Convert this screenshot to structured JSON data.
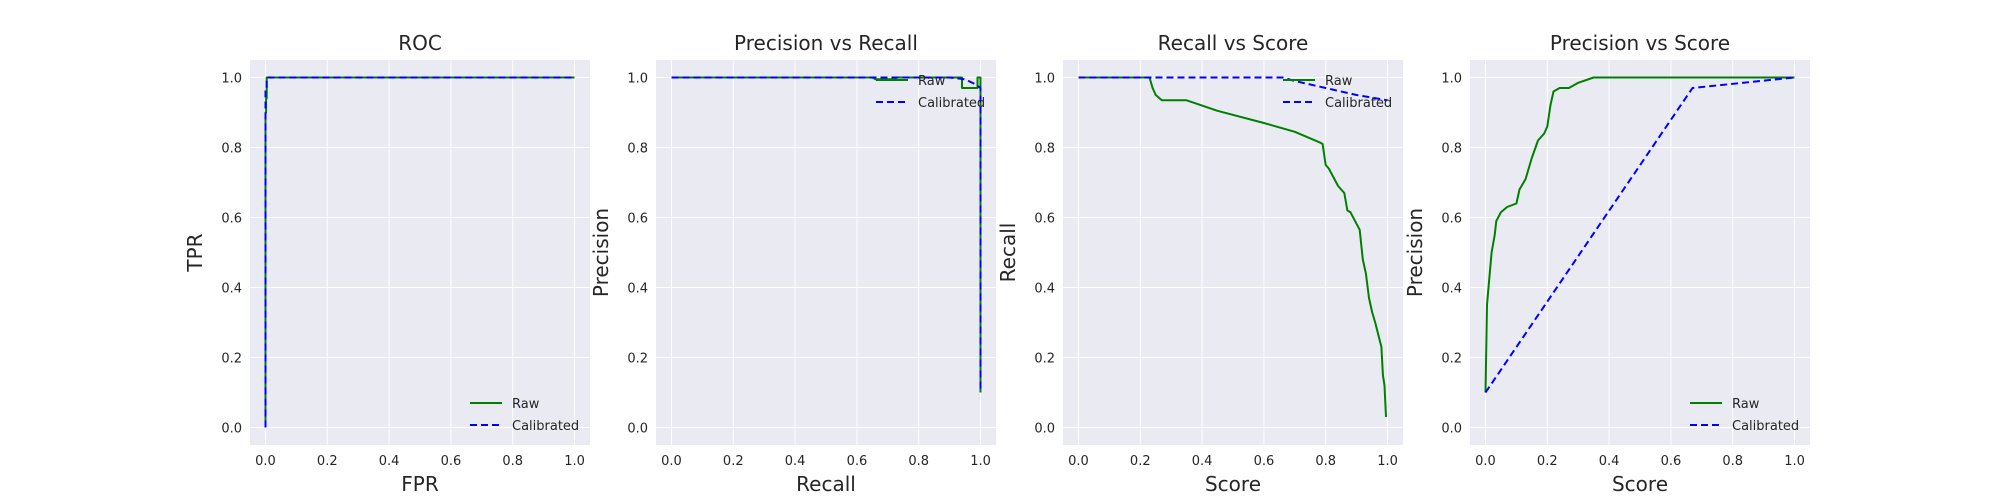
{
  "chart_data": [
    {
      "type": "line",
      "title": "ROC",
      "xlabel": "FPR",
      "ylabel": "TPR",
      "xlim": [
        -0.05,
        1.05
      ],
      "ylim": [
        -0.05,
        1.05
      ],
      "xticks": [
        0.0,
        0.2,
        0.4,
        0.6,
        0.8,
        1.0
      ],
      "yticks": [
        0.0,
        0.2,
        0.4,
        0.6,
        0.8,
        1.0
      ],
      "xtick_labels": [
        "0.0",
        "0.2",
        "0.4",
        "0.6",
        "0.8",
        "1.0"
      ],
      "ytick_labels": [
        "0.0",
        "0.2",
        "0.4",
        "0.6",
        "0.8",
        "1.0"
      ],
      "grid": true,
      "legend": "lower-right",
      "series": [
        {
          "name": "Raw",
          "color": "#008000",
          "style": "solid",
          "x": [
            0.0,
            0.0,
            0.002,
            0.002,
            0.004,
            0.004,
            0.01,
            1.0
          ],
          "y": [
            0.0,
            0.9,
            0.9,
            0.94,
            0.94,
            1.0,
            1.0,
            1.0
          ]
        },
        {
          "name": "Calibrated",
          "color": "#0000ff",
          "style": "dashed",
          "x": [
            0.0,
            0.0,
            0.004,
            0.004,
            1.0
          ],
          "y": [
            0.0,
            0.97,
            0.97,
            1.0,
            1.0
          ]
        }
      ]
    },
    {
      "type": "line",
      "title": "Precision vs Recall",
      "xlabel": "Recall",
      "ylabel": "Precision",
      "xlim": [
        -0.05,
        1.05
      ],
      "ylim": [
        -0.05,
        1.05
      ],
      "xticks": [
        0.0,
        0.2,
        0.4,
        0.6,
        0.8,
        1.0
      ],
      "yticks": [
        0.0,
        0.2,
        0.4,
        0.6,
        0.8,
        1.0
      ],
      "xtick_labels": [
        "0.0",
        "0.2",
        "0.4",
        "0.6",
        "0.8",
        "1.0"
      ],
      "ytick_labels": [
        "0.0",
        "0.2",
        "0.4",
        "0.6",
        "0.8",
        "1.0"
      ],
      "grid": true,
      "legend": "top-right",
      "series": [
        {
          "name": "Raw",
          "color": "#008000",
          "style": "solid",
          "x": [
            0.0,
            0.65,
            0.66,
            0.72,
            0.73,
            0.93,
            0.94,
            0.94,
            0.99,
            0.99,
            1.0,
            1.0
          ],
          "y": [
            1.0,
            1.0,
            0.995,
            0.995,
            1.0,
            1.0,
            1.0,
            0.97,
            0.97,
            1.0,
            1.0,
            0.1
          ]
        },
        {
          "name": "Calibrated",
          "color": "#0000ff",
          "style": "dashed",
          "x": [
            0.0,
            0.9,
            0.95,
            0.985,
            1.0,
            1.0
          ],
          "y": [
            1.0,
            1.0,
            0.995,
            0.98,
            0.97,
            0.1
          ]
        }
      ]
    },
    {
      "type": "line",
      "title": "Recall vs Score",
      "xlabel": "Score",
      "ylabel": "Recall",
      "xlim": [
        -0.05,
        1.05
      ],
      "ylim": [
        -0.05,
        1.05
      ],
      "xticks": [
        0.0,
        0.2,
        0.4,
        0.6,
        0.8,
        1.0
      ],
      "yticks": [
        0.0,
        0.2,
        0.4,
        0.6,
        0.8,
        1.0
      ],
      "xtick_labels": [
        "0.0",
        "0.2",
        "0.4",
        "0.6",
        "0.8",
        "1.0"
      ],
      "ytick_labels": [
        "0.0",
        "0.2",
        "0.4",
        "0.6",
        "0.8",
        "1.0"
      ],
      "grid": true,
      "legend": "top-right",
      "series": [
        {
          "name": "Raw",
          "color": "#008000",
          "style": "solid",
          "x": [
            0.0,
            0.23,
            0.24,
            0.25,
            0.27,
            0.35,
            0.45,
            0.6,
            0.7,
            0.78,
            0.79,
            0.8,
            0.81,
            0.84,
            0.86,
            0.87,
            0.88,
            0.91,
            0.92,
            0.93,
            0.94,
            0.95,
            0.96,
            0.98,
            0.985,
            0.99,
            0.995
          ],
          "y": [
            1.0,
            1.0,
            0.97,
            0.95,
            0.935,
            0.935,
            0.905,
            0.87,
            0.845,
            0.815,
            0.81,
            0.75,
            0.74,
            0.69,
            0.67,
            0.62,
            0.615,
            0.565,
            0.48,
            0.44,
            0.37,
            0.33,
            0.3,
            0.23,
            0.15,
            0.12,
            0.03
          ]
        },
        {
          "name": "Calibrated",
          "color": "#0000ff",
          "style": "dashed",
          "x": [
            0.0,
            0.66,
            0.7,
            0.8,
            0.9,
            1.0
          ],
          "y": [
            1.0,
            1.0,
            0.99,
            0.97,
            0.95,
            0.935
          ]
        }
      ]
    },
    {
      "type": "line",
      "title": "Precision vs Score",
      "xlabel": "Score",
      "ylabel": "Precision",
      "xlim": [
        -0.05,
        1.05
      ],
      "ylim": [
        -0.05,
        1.05
      ],
      "xticks": [
        0.0,
        0.2,
        0.4,
        0.6,
        0.8,
        1.0
      ],
      "yticks": [
        0.0,
        0.2,
        0.4,
        0.6,
        0.8,
        1.0
      ],
      "xtick_labels": [
        "0.0",
        "0.2",
        "0.4",
        "0.6",
        "0.8",
        "1.0"
      ],
      "ytick_labels": [
        "0.0",
        "0.2",
        "0.4",
        "0.6",
        "0.8",
        "1.0"
      ],
      "grid": true,
      "legend": "lower-right",
      "series": [
        {
          "name": "Raw",
          "color": "#008000",
          "style": "solid",
          "x": [
            0.0,
            0.005,
            0.01,
            0.02,
            0.03,
            0.035,
            0.05,
            0.07,
            0.1,
            0.11,
            0.13,
            0.15,
            0.17,
            0.19,
            0.2,
            0.21,
            0.22,
            0.24,
            0.27,
            0.3,
            0.35,
            0.5,
            1.0
          ],
          "y": [
            0.1,
            0.35,
            0.4,
            0.5,
            0.55,
            0.59,
            0.615,
            0.63,
            0.64,
            0.68,
            0.71,
            0.77,
            0.82,
            0.84,
            0.86,
            0.92,
            0.96,
            0.97,
            0.97,
            0.985,
            1.0,
            1.0,
            1.0
          ]
        },
        {
          "name": "Calibrated",
          "color": "#0000ff",
          "style": "dashed",
          "x": [
            0.0,
            0.67,
            1.0
          ],
          "y": [
            0.1,
            0.97,
            1.0
          ]
        }
      ]
    }
  ]
}
